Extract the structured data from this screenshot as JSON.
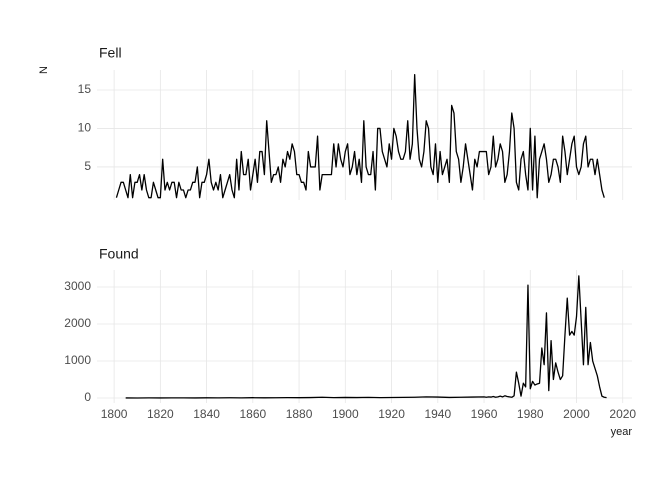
{
  "chart_data": [
    {
      "type": "line",
      "title": "Fell",
      "y_label": "N",
      "color": "#000000",
      "grid": true,
      "x_tick_labels": false,
      "xlim": [
        1792.6,
        2024
      ],
      "xticks": [
        1800,
        1820,
        1840,
        1860,
        1880,
        1900,
        1920,
        1940,
        1960,
        1980,
        2000,
        2020
      ],
      "ylim": [
        0.7,
        17.6
      ],
      "yticks": [
        5,
        10,
        15
      ],
      "x": [
        1801,
        1802,
        1803,
        1804,
        1805,
        1806,
        1807,
        1808,
        1809,
        1810,
        1811,
        1812,
        1813,
        1814,
        1815,
        1816,
        1817,
        1818,
        1819,
        1820,
        1821,
        1822,
        1823,
        1824,
        1825,
        1826,
        1827,
        1828,
        1829,
        1830,
        1831,
        1832,
        1833,
        1834,
        1835,
        1836,
        1837,
        1838,
        1839,
        1840,
        1841,
        1842,
        1843,
        1844,
        1845,
        1846,
        1847,
        1848,
        1849,
        1850,
        1851,
        1852,
        1853,
        1854,
        1855,
        1856,
        1857,
        1858,
        1859,
        1860,
        1861,
        1862,
        1863,
        1864,
        1865,
        1866,
        1867,
        1868,
        1869,
        1870,
        1871,
        1872,
        1873,
        1874,
        1875,
        1876,
        1877,
        1878,
        1879,
        1880,
        1881,
        1882,
        1883,
        1884,
        1885,
        1886,
        1887,
        1888,
        1889,
        1890,
        1891,
        1892,
        1893,
        1894,
        1895,
        1896,
        1897,
        1898,
        1899,
        1900,
        1901,
        1902,
        1903,
        1904,
        1905,
        1906,
        1907,
        1908,
        1909,
        1910,
        1911,
        1912,
        1913,
        1914,
        1915,
        1916,
        1917,
        1918,
        1919,
        1920,
        1921,
        1922,
        1923,
        1924,
        1925,
        1926,
        1927,
        1928,
        1929,
        1930,
        1931,
        1932,
        1933,
        1934,
        1935,
        1936,
        1937,
        1938,
        1939,
        1940,
        1941,
        1942,
        1943,
        1944,
        1945,
        1946,
        1947,
        1948,
        1949,
        1950,
        1951,
        1952,
        1953,
        1954,
        1955,
        1956,
        1957,
        1958,
        1959,
        1960,
        1961,
        1962,
        1963,
        1964,
        1965,
        1966,
        1967,
        1968,
        1969,
        1970,
        1971,
        1972,
        1973,
        1974,
        1975,
        1976,
        1977,
        1978,
        1979,
        1980,
        1981,
        1982,
        1983,
        1984,
        1985,
        1986,
        1987,
        1988,
        1989,
        1990,
        1991,
        1992,
        1993,
        1994,
        1995,
        1996,
        1997,
        1998,
        1999,
        2000,
        2001,
        2002,
        2003,
        2004,
        2005,
        2006,
        2007,
        2008,
        2009,
        2010,
        2011,
        2012
      ],
      "values": [
        1,
        2,
        3,
        3,
        2,
        1,
        4,
        1,
        3,
        3,
        4,
        2,
        4,
        2,
        1,
        1,
        3,
        2,
        1,
        1,
        6,
        2,
        3,
        2,
        3,
        3,
        1,
        3,
        2,
        2,
        1,
        2,
        2,
        3,
        3,
        5,
        1,
        3,
        3,
        4,
        6,
        3,
        2,
        3,
        2,
        4,
        1,
        2,
        3,
        4,
        2,
        1,
        6,
        2,
        7,
        4,
        4,
        6,
        2,
        4,
        6,
        3,
        7,
        7,
        4,
        11,
        7,
        3,
        4,
        4,
        5,
        3,
        6,
        5,
        7,
        6,
        8,
        7,
        4,
        4,
        3,
        3,
        2,
        7,
        5,
        5,
        5,
        9,
        2,
        4,
        4,
        4,
        4,
        4,
        8,
        5,
        8,
        6,
        5,
        7,
        8,
        4,
        5,
        7,
        4,
        6,
        3,
        11,
        5,
        4,
        4,
        7,
        2,
        10,
        10,
        7,
        6,
        5,
        8,
        6,
        10,
        9,
        7,
        6,
        6,
        7,
        11,
        6,
        8,
        17,
        10,
        6,
        5,
        7,
        11,
        10,
        5,
        4,
        8,
        3,
        7,
        4,
        5,
        6,
        3,
        13,
        12,
        7,
        6,
        3,
        5,
        8,
        6,
        4,
        2,
        6,
        5,
        7,
        7,
        7,
        7,
        4,
        5,
        9,
        5,
        6,
        8,
        7,
        3,
        4,
        7,
        12,
        10,
        3,
        2,
        6,
        7,
        4,
        2,
        10,
        2,
        9,
        1,
        6,
        7,
        8,
        6,
        3,
        4,
        6,
        6,
        5,
        3,
        9,
        7,
        4,
        6,
        8,
        9,
        5,
        4,
        5,
        8,
        9,
        5,
        6,
        6,
        4,
        6,
        4,
        2,
        1
      ]
    },
    {
      "type": "line",
      "title": "Found",
      "x_label": "year",
      "color": "#000000",
      "grid": true,
      "x_tick_labels": true,
      "xlim": [
        1792.6,
        2024
      ],
      "xticks": [
        1800,
        1820,
        1840,
        1860,
        1880,
        1900,
        1920,
        1940,
        1960,
        1980,
        2000,
        2020
      ],
      "ylim": [
        -135,
        3460
      ],
      "yticks": [
        0,
        1000,
        2000,
        3000
      ],
      "x": [
        1805,
        1810,
        1815,
        1820,
        1825,
        1830,
        1835,
        1840,
        1845,
        1850,
        1855,
        1860,
        1865,
        1870,
        1875,
        1880,
        1885,
        1890,
        1895,
        1900,
        1905,
        1910,
        1915,
        1920,
        1925,
        1930,
        1935,
        1940,
        1945,
        1950,
        1955,
        1960,
        1961,
        1962,
        1963,
        1964,
        1965,
        1966,
        1967,
        1968,
        1969,
        1970,
        1971,
        1972,
        1973,
        1974,
        1975,
        1976,
        1977,
        1978,
        1979,
        1980,
        1981,
        1982,
        1983,
        1984,
        1985,
        1986,
        1987,
        1988,
        1989,
        1990,
        1991,
        1992,
        1993,
        1994,
        1995,
        1996,
        1997,
        1998,
        1999,
        2000,
        2001,
        2002,
        2003,
        2004,
        2005,
        2006,
        2007,
        2008,
        2009,
        2010,
        2011,
        2012,
        2013
      ],
      "values": [
        2,
        1,
        3,
        2,
        4,
        3,
        2,
        5,
        3,
        6,
        4,
        8,
        5,
        6,
        10,
        8,
        12,
        20,
        10,
        15,
        12,
        18,
        10,
        14,
        16,
        20,
        30,
        25,
        15,
        20,
        25,
        30,
        20,
        30,
        25,
        40,
        20,
        30,
        50,
        30,
        60,
        40,
        30,
        20,
        60,
        700,
        400,
        50,
        400,
        300,
        3050,
        250,
        450,
        350,
        380,
        400,
        1350,
        900,
        2300,
        200,
        1550,
        500,
        950,
        700,
        500,
        600,
        1700,
        2700,
        1700,
        1800,
        1700,
        2200,
        3300,
        2100,
        900,
        2450,
        900,
        1500,
        1000,
        800,
        600,
        300,
        50,
        20,
        10
      ]
    }
  ]
}
